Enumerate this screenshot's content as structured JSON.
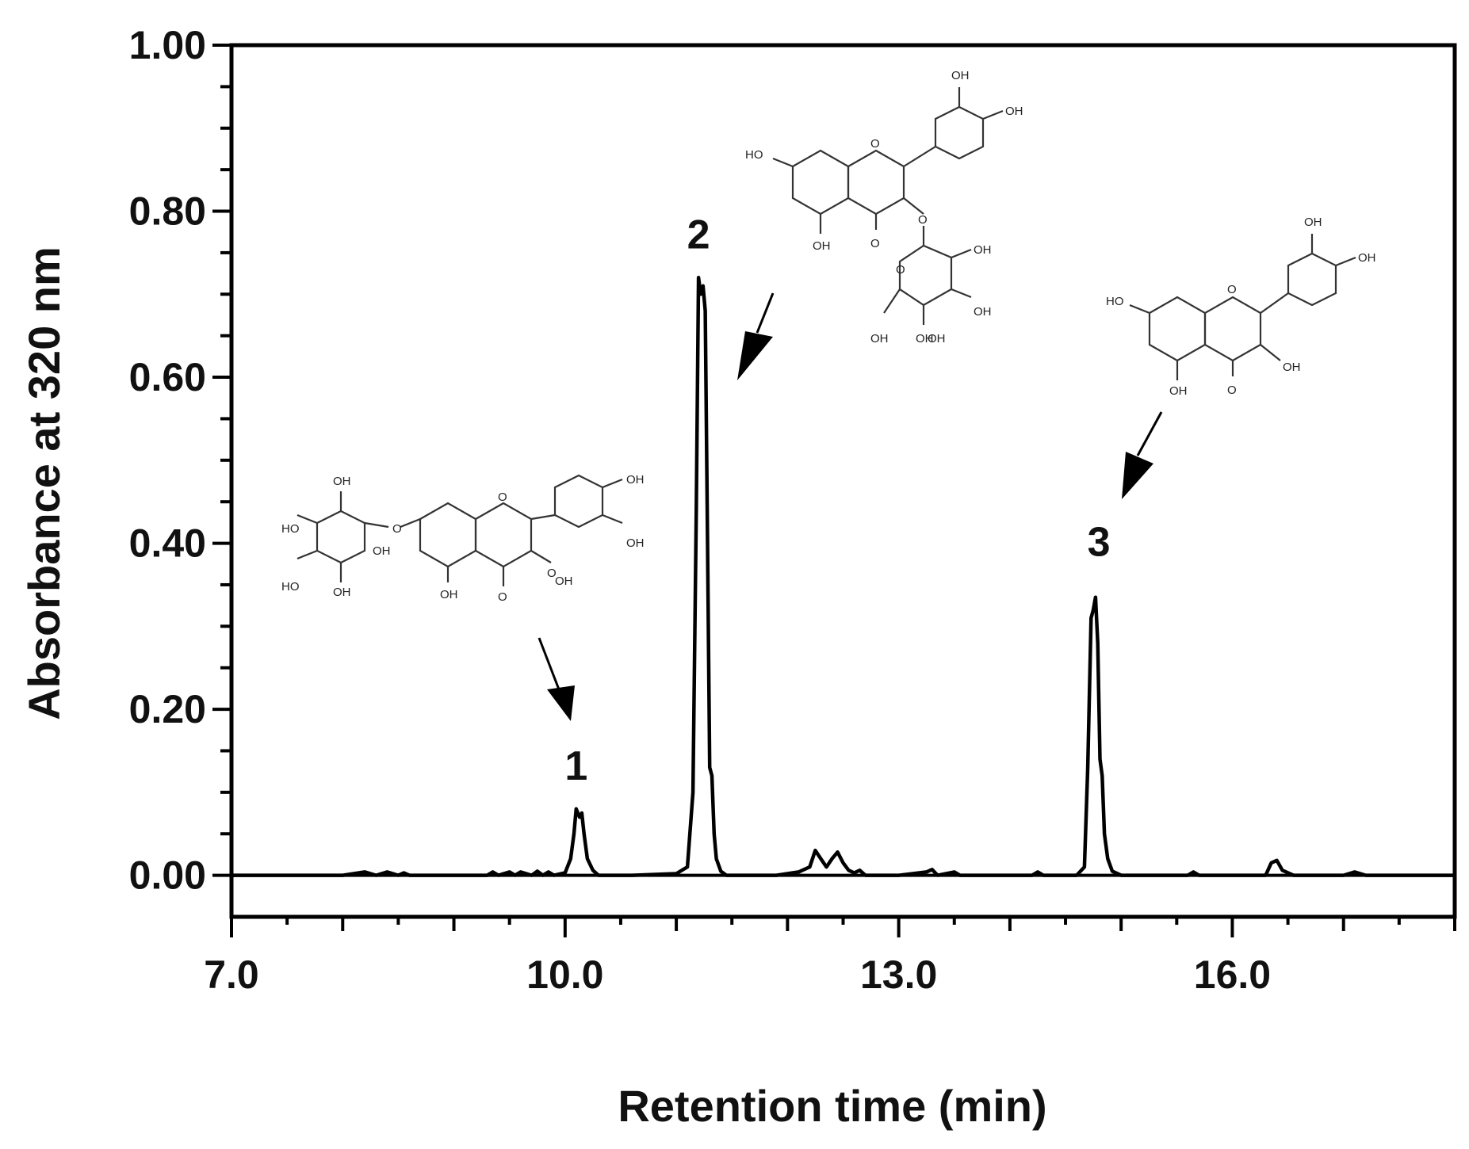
{
  "chart_data": {
    "type": "line",
    "title": "",
    "xlabel": "Retention time (min)",
    "ylabel": "Absorbance at 320 nm",
    "xlim": [
      7.0,
      18.0
    ],
    "ylim": [
      -0.05,
      1.0
    ],
    "x_ticks": [
      7.0,
      10.0,
      13.0,
      16.0
    ],
    "x_tick_labels": [
      "7.0",
      "10.0",
      "13.0",
      "16.0"
    ],
    "y_ticks": [
      0.0,
      0.2,
      0.4,
      0.6,
      0.8,
      1.0
    ],
    "y_tick_labels": [
      "0.00",
      "0.20",
      "0.40",
      "0.60",
      "0.80",
      "1.00"
    ],
    "grid": false,
    "series": [
      {
        "color": "#000000",
        "x": [
          7.0,
          8.0,
          8.2,
          8.3,
          8.4,
          8.5,
          8.55,
          8.6,
          9.3,
          9.35,
          9.4,
          9.5,
          9.55,
          9.6,
          9.7,
          9.75,
          9.8,
          9.85,
          9.9,
          10.0,
          10.05,
          10.08,
          10.1,
          10.13,
          10.15,
          10.17,
          10.2,
          10.25,
          10.3,
          10.6,
          11.0,
          11.1,
          11.15,
          11.18,
          11.2,
          11.22,
          11.24,
          11.26,
          11.28,
          11.3,
          11.32,
          11.34,
          11.36,
          11.4,
          11.45,
          11.5,
          11.9,
          12.1,
          12.2,
          12.25,
          12.3,
          12.35,
          12.4,
          12.45,
          12.5,
          12.55,
          12.6,
          12.65,
          12.7,
          13.0,
          13.25,
          13.3,
          13.35,
          13.5,
          13.55,
          13.6,
          14.2,
          14.25,
          14.3,
          14.6,
          14.67,
          14.7,
          14.73,
          14.75,
          14.77,
          14.79,
          14.81,
          14.83,
          14.85,
          14.88,
          14.92,
          15.0,
          15.6,
          15.65,
          15.7,
          16.3,
          16.35,
          16.4,
          16.45,
          16.55,
          17.0,
          17.1,
          17.2,
          18.0
        ],
        "y": [
          0.0,
          0.0,
          0.004,
          0.0,
          0.004,
          0.0,
          0.003,
          0.0,
          0.0,
          0.004,
          0.0,
          0.004,
          0.0,
          0.004,
          0.0,
          0.005,
          0.0,
          0.004,
          0.0,
          0.003,
          0.02,
          0.05,
          0.08,
          0.07,
          0.075,
          0.05,
          0.02,
          0.006,
          0.0,
          0.0,
          0.002,
          0.01,
          0.1,
          0.44,
          0.72,
          0.7,
          0.71,
          0.68,
          0.41,
          0.13,
          0.12,
          0.05,
          0.02,
          0.005,
          0.0,
          0.0,
          0.0,
          0.004,
          0.01,
          0.03,
          0.02,
          0.01,
          0.02,
          0.028,
          0.015,
          0.006,
          0.003,
          0.006,
          0.0,
          0.0,
          0.004,
          0.007,
          0.0,
          0.004,
          0.0,
          0.0,
          0.0,
          0.004,
          0.0,
          0.0,
          0.01,
          0.13,
          0.31,
          0.32,
          0.335,
          0.28,
          0.14,
          0.12,
          0.05,
          0.02,
          0.005,
          0.0,
          0.0,
          0.004,
          0.0,
          0.0,
          0.015,
          0.018,
          0.006,
          0.0,
          0.0,
          0.004,
          0.0,
          0.0
        ]
      }
    ],
    "annotations": [
      {
        "text": "1",
        "x": 10.1,
        "y": 0.115
      },
      {
        "text": "2",
        "x": 11.2,
        "y": 0.755
      },
      {
        "text": "3",
        "x": 14.8,
        "y": 0.385
      }
    ]
  },
  "structures": [
    {
      "atom_labels": [
        "HO",
        "OH",
        "O",
        "HO",
        "OH",
        "OH",
        "O",
        "O",
        "O",
        "OH",
        "OH",
        "OH",
        "OH"
      ]
    },
    {
      "atom_labels": [
        "OH",
        "OH",
        "HO",
        "O",
        "O",
        "OH",
        "O",
        "OH",
        "O",
        "OH",
        "OH",
        "OH",
        "OH"
      ]
    },
    {
      "atom_labels": [
        "OH",
        "OH",
        "HO",
        "O",
        "OH",
        "OH",
        "O"
      ]
    }
  ]
}
